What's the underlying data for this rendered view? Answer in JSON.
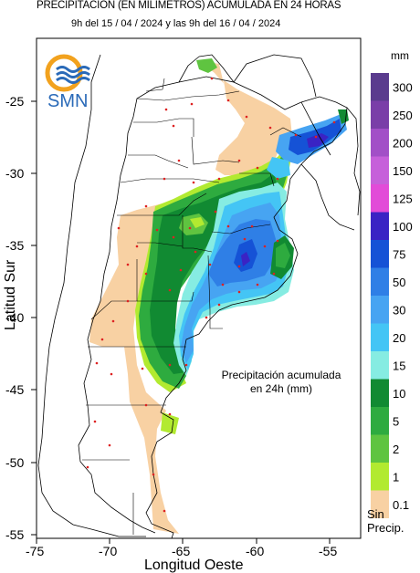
{
  "header": {
    "title": "PRECIPITACION (EN MILIMETROS) ACUMULADA EN 24 HORAS",
    "subtitle": "9h del 15 / 04 / 2024  y las 9h del 16 / 04 / 2024"
  },
  "logo": {
    "text": "SMN",
    "icon": "smn-logo-icon"
  },
  "annotation": {
    "line1": "Precipitación acumulada",
    "line2": "en 24h (mm)"
  },
  "axes": {
    "xlabel": "Longitud Oeste",
    "ylabel": "Latitud Sur",
    "xticks": [
      "-75",
      "-70",
      "-65",
      "-60",
      "-55"
    ],
    "yticks": [
      "-25",
      "-30",
      "-35",
      "-40",
      "-45",
      "-50",
      "-55"
    ],
    "xlim": [
      -75,
      -53
    ],
    "ylim": [
      -55,
      -21.5
    ]
  },
  "legend": {
    "unit": "mm",
    "nodata_line1": "Sin",
    "nodata_line2": "Precip.",
    "classes": [
      {
        "label": "300",
        "color": "#5a3b8e"
      },
      {
        "label": "250",
        "color": "#7a3ea8"
      },
      {
        "label": "200",
        "color": "#a24fc7"
      },
      {
        "label": "150",
        "color": "#c660da"
      },
      {
        "label": "125",
        "color": "#e24bd8"
      },
      {
        "label": "100",
        "color": "#3a23c4"
      },
      {
        "label": "75",
        "color": "#1552d6"
      },
      {
        "label": "50",
        "color": "#2f7fe6"
      },
      {
        "label": "30",
        "color": "#47a4f2"
      },
      {
        "label": "20",
        "color": "#44c5f5"
      },
      {
        "label": "15",
        "color": "#86ece2"
      },
      {
        "label": "10",
        "color": "#118a32"
      },
      {
        "label": "5",
        "color": "#2eab3f"
      },
      {
        "label": "2",
        "color": "#5fc440"
      },
      {
        "label": "1",
        "color": "#b2ea30"
      },
      {
        "label": "0.1",
        "color": "#f8d1a3"
      }
    ]
  }
}
